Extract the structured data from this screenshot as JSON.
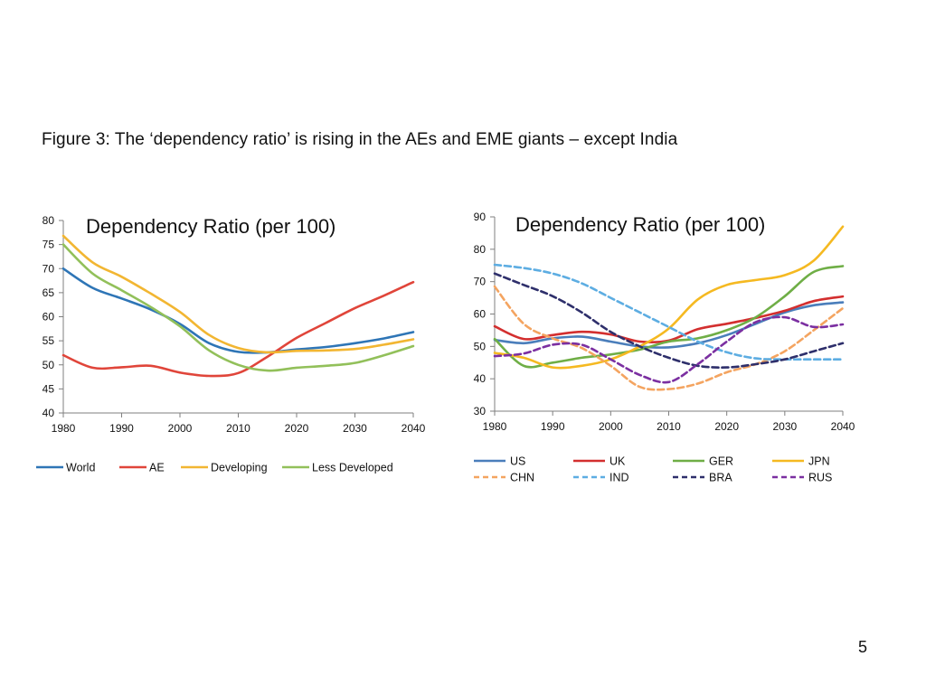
{
  "slide": {
    "title": "Figure 3:  The ‘dependency ratio’ is rising in the AEs and EME giants – except India",
    "page_number": "5"
  },
  "chart_data": [
    {
      "type": "line",
      "title": "Dependency Ratio (per 100)",
      "xlabel": "",
      "ylabel": "",
      "xlim": [
        1980,
        2040
      ],
      "ylim": [
        40,
        80
      ],
      "xticks": [
        1980,
        1990,
        2000,
        2010,
        2020,
        2030,
        2040
      ],
      "yticks": [
        40,
        45,
        50,
        55,
        60,
        65,
        70,
        75,
        80
      ],
      "grid": false,
      "legend_position": "bottom",
      "x": [
        1980,
        1985,
        1990,
        1995,
        2000,
        2005,
        2010,
        2015,
        2020,
        2025,
        2030,
        2035,
        2040
      ],
      "series": [
        {
          "name": "World",
          "color": "#2E75B6",
          "dashed": false,
          "values": [
            70,
            66,
            63.8,
            61.5,
            58.5,
            54.5,
            52.7,
            52.6,
            53.2,
            53.7,
            54.5,
            55.5,
            56.8
          ]
        },
        {
          "name": "AE",
          "color": "#E0453A",
          "dashed": false,
          "values": [
            52,
            49.4,
            49.5,
            49.8,
            48.4,
            47.7,
            48.3,
            51.7,
            55.6,
            58.7,
            61.8,
            64.4,
            67.2
          ]
        },
        {
          "name": "Developing",
          "color": "#F2B632",
          "dashed": false,
          "values": [
            76.8,
            71.3,
            68.3,
            64.8,
            61,
            56.2,
            53.5,
            52.6,
            52.9,
            53,
            53.3,
            54.2,
            55.3
          ]
        },
        {
          "name": "Less Developed",
          "color": "#92C05A",
          "dashed": false,
          "values": [
            75,
            69,
            65.5,
            62,
            58,
            53,
            50,
            48.8,
            49.4,
            49.8,
            50.4,
            52,
            53.9
          ]
        }
      ]
    },
    {
      "type": "line",
      "title": "Dependency Ratio (per 100)",
      "xlabel": "",
      "ylabel": "",
      "xlim": [
        1980,
        2040
      ],
      "ylim": [
        30,
        90
      ],
      "xticks": [
        1980,
        1990,
        2000,
        2010,
        2020,
        2030,
        2040
      ],
      "yticks": [
        30,
        40,
        50,
        60,
        70,
        80,
        90
      ],
      "grid": false,
      "legend_position": "bottom",
      "x": [
        1980,
        1985,
        1990,
        1995,
        2000,
        2005,
        2010,
        2015,
        2020,
        2025,
        2030,
        2035,
        2040
      ],
      "series": [
        {
          "name": "US",
          "color": "#4A7EBB",
          "dashed": false,
          "values": [
            52,
            51,
            52.5,
            53,
            51.5,
            50,
            49.7,
            51,
            53.5,
            57,
            60.5,
            62.7,
            63.6
          ]
        },
        {
          "name": "UK",
          "color": "#D32F2F",
          "dashed": false,
          "values": [
            56.2,
            52.3,
            53.5,
            54.5,
            53.7,
            51.5,
            51.8,
            55.3,
            57,
            58.8,
            61,
            64,
            65.4
          ]
        },
        {
          "name": "GER",
          "color": "#6FAE46",
          "dashed": false,
          "values": [
            52.3,
            44,
            45,
            46.5,
            47.5,
            49,
            51.5,
            52.5,
            55,
            59,
            65.5,
            73,
            74.8
          ]
        },
        {
          "name": "JPN",
          "color": "#F5B921",
          "dashed": false,
          "values": [
            48,
            46.5,
            43.5,
            44,
            46,
            50,
            55.5,
            64.5,
            69,
            70.5,
            72,
            76.5,
            87
          ]
        },
        {
          "name": "CHN",
          "color": "#F4A460",
          "dashed": true,
          "values": [
            68.5,
            57,
            52.5,
            49.5,
            44,
            37.5,
            36.8,
            38.5,
            42,
            44.5,
            48.5,
            55,
            61.8
          ]
        },
        {
          "name": "IND",
          "color": "#5DADE2",
          "dashed": true,
          "values": [
            75.2,
            74.2,
            72.5,
            69.5,
            65,
            60.5,
            56,
            51.5,
            48.2,
            46.3,
            46,
            46,
            46
          ]
        },
        {
          "name": "BRA",
          "color": "#2E2F6B",
          "dashed": true,
          "values": [
            72.5,
            69,
            65.5,
            60.5,
            54.5,
            50,
            46.5,
            44,
            43.5,
            44.5,
            46,
            48.5,
            51
          ]
        },
        {
          "name": "RUS",
          "color": "#7B2FA1",
          "dashed": true,
          "values": [
            47,
            47.8,
            50.5,
            50.5,
            46,
            41.2,
            39,
            44.5,
            51.5,
            57.5,
            59,
            56,
            56.8
          ]
        }
      ]
    }
  ]
}
